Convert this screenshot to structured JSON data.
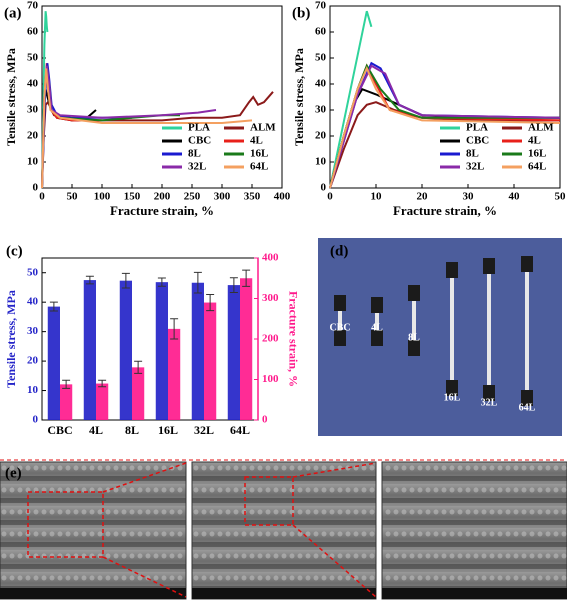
{
  "chart_data": [
    {
      "type": "line",
      "panel_label": "(a)",
      "xlabel": "Fracture strain, %",
      "ylabel": "Tensile stress, MPa",
      "xlim": [
        0,
        400
      ],
      "xticks": [
        0,
        50,
        100,
        150,
        200,
        250,
        300,
        350,
        400
      ],
      "ylim": [
        0,
        70
      ],
      "yticks": [
        0,
        10,
        20,
        30,
        40,
        50,
        60,
        70
      ],
      "legend": "lower right",
      "series": [
        {
          "name": "PLA",
          "color": "#2fd39b",
          "x": [
            0,
            2,
            4,
            6,
            7,
            8,
            9
          ],
          "y": [
            0,
            30,
            55,
            68,
            66,
            62,
            60
          ]
        },
        {
          "name": "ALM",
          "color": "#8b1a1a",
          "x": [
            0,
            3,
            6,
            10,
            20,
            50,
            100,
            150,
            200,
            250,
            300,
            330,
            345,
            352,
            360,
            370,
            385
          ],
          "y": [
            0,
            20,
            32,
            33,
            28,
            26,
            26,
            26,
            26,
            27,
            27,
            28,
            33,
            35,
            32,
            33,
            37
          ]
        },
        {
          "name": "CBC",
          "color": "#000000",
          "x": [
            0,
            3,
            6,
            8,
            15,
            25,
            50,
            75,
            90
          ],
          "y": [
            0,
            30,
            38,
            36,
            30,
            27,
            26,
            27,
            30
          ]
        },
        {
          "name": "4L",
          "color": "#e8201a",
          "x": [
            0,
            4,
            8,
            11,
            15,
            25,
            50,
            75,
            100
          ],
          "y": [
            0,
            35,
            48,
            40,
            30,
            27,
            26,
            26,
            26
          ]
        },
        {
          "name": "8L",
          "color": "#1a1ad0",
          "x": [
            0,
            5,
            9,
            12,
            16,
            25,
            50,
            100,
            150
          ],
          "y": [
            0,
            35,
            48,
            42,
            32,
            28,
            27,
            27,
            27
          ]
        },
        {
          "name": "16L",
          "color": "#1a7a1a",
          "x": [
            0,
            4,
            8,
            12,
            16,
            30,
            100,
            150,
            200,
            230
          ],
          "y": [
            0,
            35,
            47,
            40,
            30,
            27,
            26,
            27,
            28,
            28
          ]
        },
        {
          "name": "32L",
          "color": "#8a2aa8",
          "x": [
            0,
            4,
            8,
            12,
            16,
            30,
            100,
            200,
            260,
            290
          ],
          "y": [
            0,
            35,
            47,
            40,
            30,
            28,
            27,
            28,
            29,
            30
          ]
        },
        {
          "name": "64L",
          "color": "#f4a060",
          "x": [
            0,
            4,
            7,
            10,
            14,
            30,
            100,
            200,
            300,
            350
          ],
          "y": [
            0,
            35,
            46,
            38,
            30,
            27,
            25,
            25,
            25,
            26
          ]
        }
      ]
    },
    {
      "type": "line",
      "panel_label": "(b)",
      "xlabel": "Fracture strain, %",
      "ylabel": "Tensile stress, MPa",
      "xlim": [
        0,
        50
      ],
      "xticks": [
        0,
        10,
        20,
        30,
        40,
        50
      ],
      "ylim": [
        0,
        70
      ],
      "yticks": [
        0,
        10,
        20,
        30,
        40,
        50,
        60,
        70
      ],
      "legend": "lower right",
      "series": [
        {
          "name": "PLA",
          "color": "#2fd39b",
          "x": [
            0,
            2,
            4,
            6,
            8,
            9
          ],
          "y": [
            0,
            17,
            34,
            51,
            68,
            62
          ]
        },
        {
          "name": "ALM",
          "color": "#8b1a1a",
          "x": [
            0,
            3,
            6,
            8,
            10,
            14,
            20,
            30,
            50
          ],
          "y": [
            0,
            15,
            28,
            32,
            33,
            30,
            27,
            26,
            26
          ]
        },
        {
          "name": "CBC",
          "color": "#000000",
          "x": [
            0,
            3,
            5,
            7,
            10,
            15,
            20,
            30,
            50
          ],
          "y": [
            0,
            20,
            32,
            38,
            36,
            32,
            28,
            27,
            27
          ]
        },
        {
          "name": "4L",
          "color": "#e8201a",
          "x": [
            0,
            3,
            6,
            8,
            10,
            13,
            20,
            50
          ],
          "y": [
            0,
            20,
            38,
            47,
            40,
            30,
            27,
            26
          ]
        },
        {
          "name": "8L",
          "color": "#1a1ad0",
          "x": [
            0,
            3,
            6,
            9,
            11,
            15,
            20,
            50
          ],
          "y": [
            0,
            18,
            36,
            48,
            46,
            32,
            28,
            27
          ]
        },
        {
          "name": "16L",
          "color": "#1a7a1a",
          "x": [
            0,
            3,
            6,
            8,
            11,
            15,
            20,
            50
          ],
          "y": [
            0,
            20,
            38,
            47,
            38,
            30,
            27,
            27
          ]
        },
        {
          "name": "32L",
          "color": "#8a2aa8",
          "x": [
            0,
            3,
            6,
            9,
            12,
            15,
            20,
            50
          ],
          "y": [
            0,
            18,
            36,
            47,
            44,
            32,
            28,
            27
          ]
        },
        {
          "name": "64L",
          "color": "#f4a060",
          "x": [
            0,
            3,
            6,
            8,
            10,
            13,
            20,
            50
          ],
          "y": [
            0,
            20,
            38,
            46,
            38,
            30,
            26,
            25
          ]
        }
      ]
    },
    {
      "type": "bar",
      "panel_label": "(c)",
      "ylabel": "Tensile stress, MPa",
      "y2label": "Fracture strain, %",
      "categories": [
        "CBC",
        "4L",
        "8L",
        "16L",
        "32L",
        "64L"
      ],
      "ylim": [
        0,
        55
      ],
      "yticks": [
        0,
        10,
        20,
        30,
        40,
        50
      ],
      "y2lim": [
        0,
        400
      ],
      "y2ticks": [
        0,
        100,
        200,
        300,
        400
      ],
      "series": [
        {
          "name": "Tensile stress",
          "color": "#2424c8",
          "values": [
            38.5,
            47.5,
            47.3,
            46.8,
            46.6,
            45.8
          ],
          "errors": [
            1.5,
            1.3,
            2.5,
            1.4,
            3.5,
            2.5
          ]
        },
        {
          "name": "Fracture strain",
          "color": "#ff1a8c",
          "axis": "y2",
          "values": [
            88,
            90,
            130,
            225,
            290,
            350
          ],
          "errors": [
            10,
            8,
            15,
            25,
            20,
            20
          ]
        }
      ]
    }
  ],
  "panels": {
    "d": {
      "label": "(d)",
      "specimen_labels": [
        "CBC",
        "4L",
        "8L",
        "16L",
        "32L",
        "64L"
      ]
    },
    "e": {
      "label": "(e)"
    }
  }
}
